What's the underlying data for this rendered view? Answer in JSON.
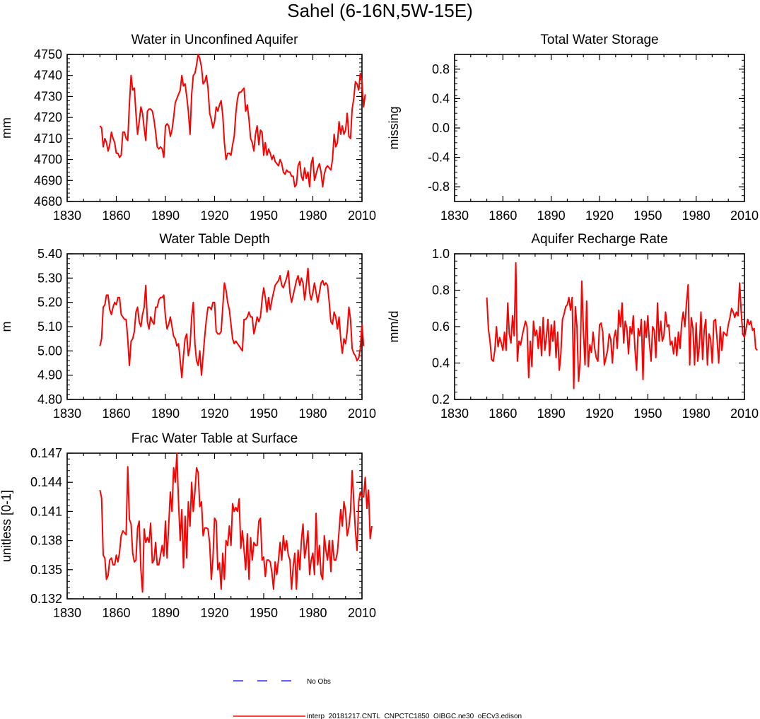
{
  "figure_title": "Sahel (6-16N,5W-15E)",
  "colors": {
    "model": "#ff0000",
    "obs": "#0000ff",
    "axis": "#000000"
  },
  "legend": {
    "obs_label": "No Obs",
    "model_label": "interp_20181217.CNTL_CNPCTC1850_OIBGC.ne30_oECv3.edison"
  },
  "chart_data": [
    {
      "type": "line",
      "title": "Water in Unconfined Aquifer",
      "ylabel": "mm",
      "xlabel": "",
      "xlim": [
        1830,
        2010
      ],
      "ylim": [
        4680,
        4750
      ],
      "xticks": [
        "1830",
        "1860",
        "1890",
        "1920",
        "1950",
        "1980",
        "2010"
      ],
      "yticks": [
        "4680",
        "4690",
        "4700",
        "4710",
        "4720",
        "4730",
        "4740",
        "4750"
      ],
      "ytick_values": [
        4680,
        4690,
        4700,
        4710,
        4720,
        4730,
        4740,
        4750
      ],
      "series": [
        {
          "name": "model",
          "x_start": 1850,
          "values": [
            4716,
            4715,
            4706,
            4710,
            4708,
            4704,
            4707,
            4713,
            4710,
            4708,
            4703,
            4703,
            4701,
            4702,
            4713,
            4713,
            4710,
            4709,
            4726,
            4740,
            4733,
            4734,
            4722,
            4712,
            4718,
            4725,
            4722,
            4715,
            4709,
            4723,
            4724,
            4724,
            4723,
            4719,
            4713,
            4706,
            4705,
            4706,
            4705,
            4701,
            4716,
            4717,
            4716,
            4711,
            4714,
            4720,
            4727,
            4729,
            4731,
            4733,
            4740,
            4735,
            4736,
            4730,
            4723,
            4712,
            4731,
            4740,
            4741,
            4745,
            4750,
            4748,
            4744,
            4736,
            4737,
            4740,
            4734,
            4722,
            4719,
            4715,
            4718,
            4725,
            4723,
            4726,
            4728,
            4721,
            4708,
            4700,
            4703,
            4703,
            4702,
            4707,
            4711,
            4722,
            4729,
            4732,
            4732,
            4733,
            4734,
            4723,
            4726,
            4719,
            4710,
            4708,
            4704,
            4712,
            4716,
            4707,
            4714,
            4713,
            4702,
            4708,
            4702,
            4705,
            4703,
            4700,
            4702,
            4699,
            4698,
            4697,
            4700,
            4698,
            4694,
            4693,
            4695,
            4694,
            4694,
            4692,
            4692,
            4687,
            4688,
            4697,
            4699,
            4692,
            4690,
            4696,
            4691,
            4694,
            4687,
            4698,
            4701,
            4690,
            4693,
            4696,
            4698,
            4694,
            4687,
            4693,
            4696,
            4697,
            4696,
            4695,
            4700,
            4712,
            4706,
            4708,
            4718,
            4712,
            4716,
            4712,
            4714,
            4722,
            4711,
            4710,
            4724,
            4729,
            4737,
            4736,
            4733,
            4741,
            4737,
            4725,
            4731
          ]
        }
      ]
    },
    {
      "type": "line",
      "title": "Total Water Storage",
      "ylabel": "missing",
      "xlabel": "",
      "xlim": [
        1830,
        2010
      ],
      "ylim": [
        -1.0,
        1.0
      ],
      "xticks": [
        "1830",
        "1860",
        "1890",
        "1920",
        "1950",
        "1980",
        "2010"
      ],
      "yticks": [
        "-0.8",
        "-0.4",
        "0.0",
        "0.4",
        "0.8"
      ],
      "ytick_values": [
        -0.8,
        -0.4,
        0.0,
        0.4,
        0.8
      ],
      "series": []
    },
    {
      "type": "line",
      "title": "Water Table Depth",
      "ylabel": "m",
      "xlabel": "",
      "xlim": [
        1830,
        2010
      ],
      "ylim": [
        4.8,
        5.4
      ],
      "xticks": [
        "1830",
        "1860",
        "1890",
        "1920",
        "1950",
        "1980",
        "2010"
      ],
      "yticks": [
        "4.80",
        "4.90",
        "5.00",
        "5.10",
        "5.20",
        "5.30",
        "5.40"
      ],
      "ytick_values": [
        4.8,
        4.9,
        5.0,
        5.1,
        5.2,
        5.3,
        5.4
      ],
      "series": [
        {
          "name": "model",
          "x_start": 1850,
          "values": [
            5.02,
            5.05,
            5.18,
            5.19,
            5.23,
            5.23,
            5.17,
            5.15,
            5.18,
            5.2,
            5.19,
            5.22,
            5.22,
            5.15,
            5.14,
            5.13,
            5.13,
            5.05,
            4.94,
            5.04,
            5.05,
            5.08,
            5.16,
            5.18,
            5.12,
            5.1,
            5.15,
            5.18,
            5.27,
            5.12,
            5.09,
            5.14,
            5.12,
            5.11,
            5.18,
            5.18,
            5.21,
            5.22,
            5.22,
            5.23,
            5.14,
            5.09,
            5.11,
            5.14,
            5.1,
            5.06,
            5.05,
            5.02,
            5.03,
            4.96,
            4.89,
            4.98,
            5.05,
            5.07,
            4.98,
            5.02,
            5.14,
            5.2,
            5.03,
            4.96,
            4.94,
            5.0,
            4.9,
            4.98,
            5.06,
            5.13,
            5.18,
            5.18,
            5.17,
            5.2,
            5.2,
            5.08,
            5.07,
            5.07,
            5.08,
            5.18,
            5.28,
            5.25,
            5.2,
            5.17,
            5.11,
            5.05,
            5.03,
            5.04,
            5.03,
            5.02,
            5.01,
            5.0,
            5.13,
            5.13,
            5.14,
            5.16,
            5.14,
            5.14,
            5.07,
            5.1,
            5.14,
            5.12,
            5.14,
            5.21,
            5.26,
            5.22,
            5.16,
            5.22,
            5.17,
            5.21,
            5.24,
            5.27,
            5.28,
            5.29,
            5.31,
            5.27,
            5.26,
            5.28,
            5.3,
            5.33,
            5.24,
            5.2,
            5.23,
            5.26,
            5.29,
            5.31,
            5.27,
            5.3,
            5.28,
            5.21,
            5.27,
            5.34,
            5.24,
            5.21,
            5.24,
            5.28,
            5.24,
            5.2,
            5.24,
            5.28,
            5.29,
            5.27,
            5.28,
            5.27,
            5.2,
            5.12,
            5.11,
            5.16,
            5.14,
            5.09,
            5.14,
            5.05,
            4.99,
            5.05,
            5.03,
            5.08,
            5.18,
            5.13,
            5.01,
            4.99,
            4.98,
            4.96,
            4.97,
            5.01,
            5.11,
            5.02
          ]
        }
      ]
    },
    {
      "type": "line",
      "title": "Aquifer Recharge Rate",
      "ylabel": "mm/d",
      "xlabel": "",
      "xlim": [
        1830,
        2010
      ],
      "ylim": [
        0.2,
        1.0
      ],
      "xticks": [
        "1830",
        "1860",
        "1890",
        "1920",
        "1950",
        "1980",
        "2010"
      ],
      "yticks": [
        "0.2",
        "0.4",
        "0.6",
        "0.8",
        "1.0"
      ],
      "ytick_values": [
        0.2,
        0.4,
        0.6,
        0.8,
        1.0
      ],
      "series": [
        {
          "name": "model",
          "x_start": 1850,
          "values": [
            0.76,
            0.59,
            0.52,
            0.42,
            0.41,
            0.47,
            0.6,
            0.49,
            0.54,
            0.51,
            0.47,
            0.57,
            0.47,
            0.73,
            0.56,
            0.51,
            0.66,
            0.55,
            0.95,
            0.41,
            0.52,
            0.5,
            0.55,
            0.59,
            0.63,
            0.6,
            0.32,
            0.52,
            0.38,
            0.63,
            0.55,
            0.58,
            0.48,
            0.6,
            0.44,
            0.65,
            0.47,
            0.54,
            0.64,
            0.44,
            0.61,
            0.52,
            0.63,
            0.43,
            0.57,
            0.36,
            0.45,
            0.64,
            0.67,
            0.71,
            0.72,
            0.76,
            0.69,
            0.76,
            0.26,
            0.71,
            0.6,
            0.3,
            0.42,
            0.85,
            0.58,
            0.39,
            0.74,
            0.38,
            0.5,
            0.46,
            0.57,
            0.48,
            0.43,
            0.41,
            0.61,
            0.62,
            0.57,
            0.39,
            0.43,
            0.47,
            0.56,
            0.53,
            0.4,
            0.54,
            0.58,
            0.48,
            0.69,
            0.6,
            0.73,
            0.51,
            0.63,
            0.59,
            0.45,
            0.6,
            0.56,
            0.66,
            0.48,
            0.36,
            0.59,
            0.55,
            0.64,
            0.31,
            0.63,
            0.54,
            0.66,
            0.51,
            0.41,
            0.6,
            0.58,
            0.43,
            0.73,
            0.52,
            0.63,
            0.52,
            0.55,
            0.68,
            0.6,
            0.61,
            0.5,
            0.52,
            0.45,
            0.54,
            0.44,
            0.57,
            0.48,
            0.62,
            0.68,
            0.6,
            0.73,
            0.83,
            0.39,
            0.65,
            0.59,
            0.39,
            0.62,
            0.41,
            0.49,
            0.68,
            0.42,
            0.58,
            0.64,
            0.39,
            0.56,
            0.53,
            0.4,
            0.63,
            0.64,
            0.53,
            0.4,
            0.6,
            0.47,
            0.57,
            0.56,
            0.55,
            0.61,
            0.65,
            0.7,
            0.68,
            0.65,
            0.68,
            0.66,
            0.84,
            0.68,
            0.56,
            0.54,
            0.59,
            0.64,
            0.61,
            0.63,
            0.58,
            0.59,
            0.48,
            0.47
          ]
        }
      ]
    },
    {
      "type": "line",
      "title": "Frac Water Table at Surface",
      "ylabel": "unitless [0-1]",
      "xlabel": "",
      "xlim": [
        1830,
        2010
      ],
      "ylim": [
        0.132,
        0.147
      ],
      "xticks": [
        "1830",
        "1860",
        "1890",
        "1920",
        "1950",
        "1980",
        "2010"
      ],
      "yticks": [
        "0.132",
        "0.135",
        "0.138",
        "0.141",
        "0.144",
        "0.147"
      ],
      "ytick_values": [
        0.132,
        0.135,
        0.138,
        0.141,
        0.144,
        0.147
      ],
      "series": [
        {
          "name": "model",
          "x_start": 1850,
          "values": [
            0.1432,
            0.1424,
            0.1365,
            0.1362,
            0.134,
            0.1344,
            0.136,
            0.1362,
            0.1355,
            0.1355,
            0.1365,
            0.1358,
            0.1368,
            0.1385,
            0.139,
            0.1388,
            0.1386,
            0.1456,
            0.1402,
            0.1397,
            0.1367,
            0.1358,
            0.136,
            0.1393,
            0.14,
            0.135,
            0.1327,
            0.1392,
            0.1378,
            0.1383,
            0.1378,
            0.1398,
            0.1357,
            0.136,
            0.1378,
            0.1355,
            0.1355,
            0.1365,
            0.1375,
            0.1364,
            0.14,
            0.1362,
            0.1395,
            0.143,
            0.141,
            0.1455,
            0.144,
            0.147,
            0.142,
            0.138,
            0.1412,
            0.1352,
            0.1405,
            0.1362,
            0.142,
            0.1395,
            0.144,
            0.141,
            0.143,
            0.1455,
            0.145,
            0.1415,
            0.142,
            0.1385,
            0.1393,
            0.1393,
            0.1392,
            0.1377,
            0.134,
            0.1362,
            0.1403,
            0.14,
            0.135,
            0.1357,
            0.133,
            0.1367,
            0.134,
            0.138,
            0.1375,
            0.1395,
            0.1375,
            0.1418,
            0.141,
            0.1414,
            0.141,
            0.1423,
            0.1372,
            0.139,
            0.137,
            0.135,
            0.1387,
            0.134,
            0.1383,
            0.136,
            0.1378,
            0.1375,
            0.1375,
            0.14,
            0.1403,
            0.136,
            0.1363,
            0.1343,
            0.136,
            0.136,
            0.1358,
            0.1347,
            0.133,
            0.1358,
            0.1345,
            0.136,
            0.1378,
            0.136,
            0.1385,
            0.137,
            0.138,
            0.1365,
            0.136,
            0.133,
            0.1353,
            0.1367,
            0.133,
            0.137,
            0.135,
            0.138,
            0.1397,
            0.1362,
            0.1373,
            0.139,
            0.1345,
            0.136,
            0.1367,
            0.1345,
            0.1408,
            0.1355,
            0.1375,
            0.1345,
            0.134,
            0.1385,
            0.137,
            0.136,
            0.138,
            0.1348,
            0.138,
            0.136,
            0.136,
            0.1368,
            0.139,
            0.1412,
            0.1395,
            0.142,
            0.141,
            0.1385,
            0.1394,
            0.141,
            0.1452,
            0.142,
            0.139,
            0.137,
            0.142,
            0.143,
            0.1425,
            0.1425,
            0.1445,
            0.1413,
            0.1432,
            0.1382,
            0.1395
          ]
        }
      ]
    }
  ]
}
